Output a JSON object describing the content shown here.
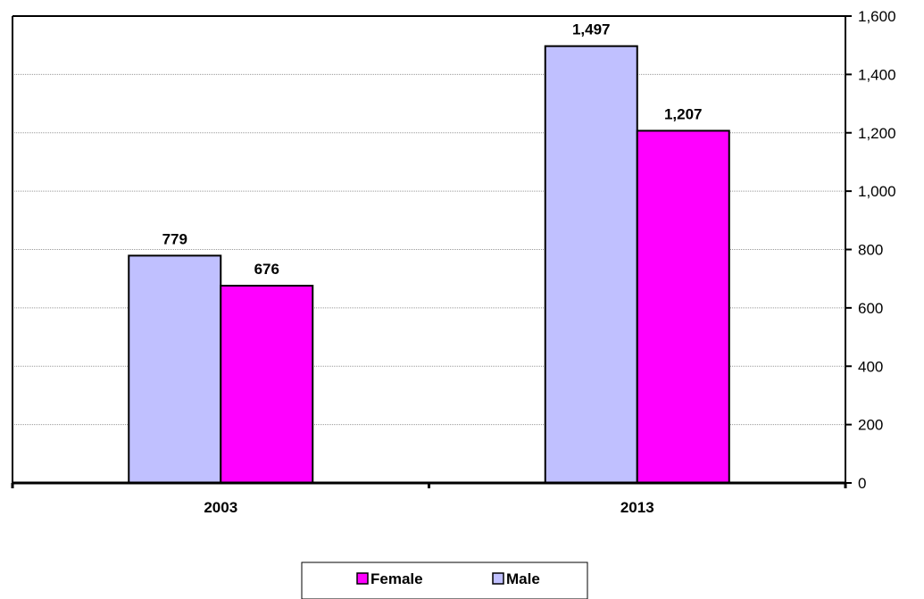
{
  "chart_data": {
    "type": "bar",
    "categories": [
      "2003",
      "2013"
    ],
    "series": [
      {
        "name": "Male",
        "values": [
          779,
          1497
        ],
        "color": "#c0c0ff"
      },
      {
        "name": "Female",
        "values": [
          676,
          1207
        ],
        "color": "#ff00ff"
      }
    ],
    "data_labels": [
      [
        "779",
        "1,497"
      ],
      [
        "676",
        "1,207"
      ]
    ],
    "ylim": [
      0,
      1600
    ],
    "yticks": [
      0,
      200,
      400,
      600,
      800,
      1000,
      1200,
      1400,
      1600
    ],
    "ytick_labels": [
      "0",
      "200",
      "400",
      "600",
      "800",
      "1,000",
      "1,200",
      "1,400",
      "1,600"
    ],
    "y_axis_side": "right",
    "grid": true,
    "legend": {
      "placement": "bottom",
      "order": [
        "Female",
        "Male"
      ]
    },
    "title": "",
    "xlabel": "",
    "ylabel": ""
  }
}
